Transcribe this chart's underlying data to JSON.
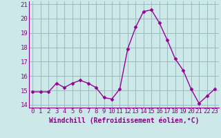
{
  "x": [
    0,
    1,
    2,
    3,
    4,
    5,
    6,
    7,
    8,
    9,
    10,
    11,
    12,
    13,
    14,
    15,
    16,
    17,
    18,
    19,
    20,
    21,
    22,
    23
  ],
  "y": [
    14.9,
    14.9,
    14.9,
    15.5,
    15.2,
    15.5,
    15.7,
    15.5,
    15.2,
    14.5,
    14.4,
    15.1,
    17.9,
    19.4,
    20.5,
    20.6,
    19.7,
    18.5,
    17.2,
    16.4,
    15.1,
    14.1,
    14.6,
    15.1
  ],
  "line_color": "#990099",
  "marker": "D",
  "marker_size": 2.5,
  "bg_color": "#cce8e8",
  "grid_color": "#99bbbb",
  "xlabel": "Windchill (Refroidissement éolien,°C)",
  "xlabel_color": "#880088",
  "tick_color": "#880088",
  "ylim": [
    13.8,
    21.2
  ],
  "xlim": [
    -0.5,
    23.5
  ],
  "yticks": [
    14,
    15,
    16,
    17,
    18,
    19,
    20,
    21
  ],
  "xticks": [
    0,
    1,
    2,
    3,
    4,
    5,
    6,
    7,
    8,
    9,
    10,
    11,
    12,
    13,
    14,
    15,
    16,
    17,
    18,
    19,
    20,
    21,
    22,
    23
  ],
  "tick_fontsize": 6.5,
  "xlabel_fontsize": 7.0
}
